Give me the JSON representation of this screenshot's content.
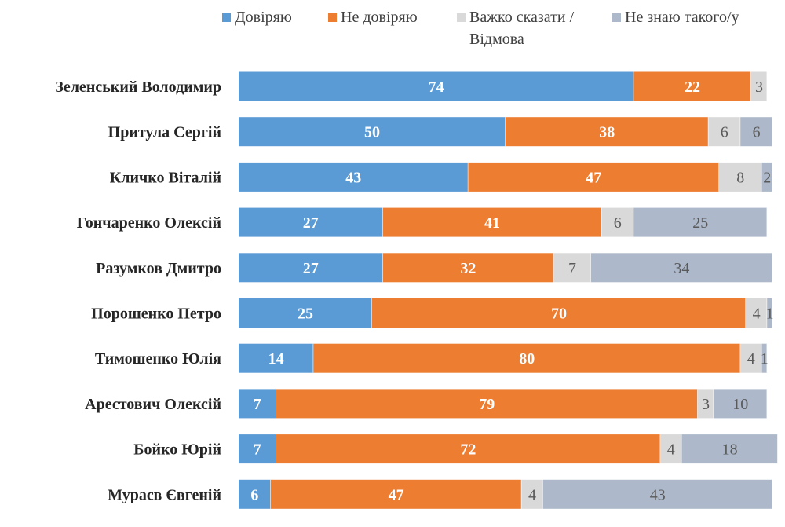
{
  "chart_data": {
    "type": "bar",
    "orientation": "horizontal",
    "stacked": true,
    "xlim": [
      0,
      100
    ],
    "grid": false,
    "legend_placement": "top",
    "categories": [
      "Зеленський Володимир",
      "Притула Сергій",
      "Кличко Віталій",
      "Гончаренко Олексій",
      "Разумков Дмитро",
      "Порошенко Петро",
      "Тимошенко Юлія",
      "Арестович Олексій",
      "Бойко Юрій",
      "Мураєв Євгеній"
    ],
    "series": [
      {
        "name": "Довіряю",
        "color": "#5b9bd5",
        "values": [
          74,
          50,
          43,
          27,
          27,
          25,
          14,
          7,
          7,
          6
        ]
      },
      {
        "name": "Не довіряю",
        "color": "#ed7d31",
        "values": [
          22,
          38,
          47,
          41,
          32,
          70,
          80,
          79,
          72,
          47
        ]
      },
      {
        "name": "Важко сказати / Відмова",
        "color": "#d9d9d9",
        "values": [
          3,
          6,
          8,
          6,
          7,
          4,
          4,
          3,
          4,
          4
        ]
      },
      {
        "name": "Не знаю такого/у",
        "color": "#adb9ca",
        "values": [
          null,
          6,
          2,
          25,
          34,
          1,
          1,
          10,
          18,
          43
        ]
      }
    ]
  }
}
